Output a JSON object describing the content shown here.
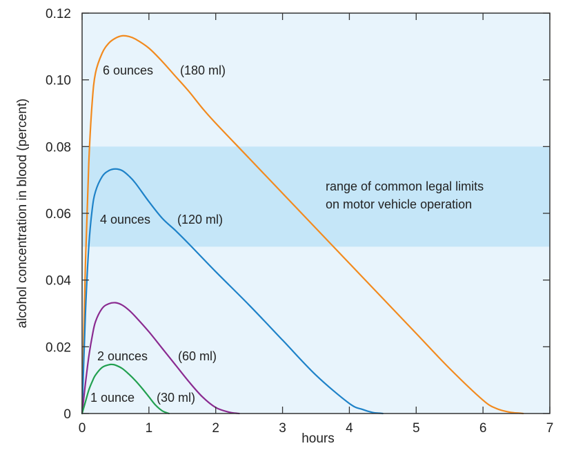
{
  "chart_data": {
    "type": "line",
    "title": "",
    "xlabel": "hours",
    "ylabel": "alcohol concentration in blood (percent)",
    "xlim": [
      0,
      7
    ],
    "ylim": [
      0,
      0.12
    ],
    "x_ticks": [
      "0",
      "1",
      "2",
      "3",
      "4",
      "5",
      "6",
      "7"
    ],
    "y_ticks": [
      "0",
      "0.02",
      "0.04",
      "0.06",
      "0.08",
      "0.10",
      "0.12"
    ],
    "grid": false,
    "colors": {
      "plot_background": "#e8f4fc",
      "band": "#c5e6f8",
      "axis": "#333333"
    },
    "band": {
      "y_range": [
        0.05,
        0.08
      ],
      "label_lines": [
        "range of common legal limits",
        "on motor vehicle operation"
      ]
    },
    "series": [
      {
        "name": "6 ounces",
        "label_amount": "6 ounces",
        "label_volume": "(180 ml)",
        "color": "#f28a1e",
        "x": [
          0,
          0.05,
          0.1,
          0.15,
          0.2,
          0.3,
          0.4,
          0.5,
          0.6,
          0.7,
          0.8,
          1.0,
          1.2,
          1.4,
          1.6,
          1.8,
          2.0,
          2.5,
          3.0,
          3.5,
          4.0,
          4.5,
          5.0,
          5.5,
          6.0,
          6.2,
          6.4,
          6.55,
          6.6
        ],
        "y": [
          0,
          0.045,
          0.075,
          0.093,
          0.102,
          0.108,
          0.111,
          0.1125,
          0.1132,
          0.113,
          0.1122,
          0.1095,
          0.1055,
          0.101,
          0.0965,
          0.0915,
          0.087,
          0.0765,
          0.066,
          0.0555,
          0.045,
          0.0345,
          0.024,
          0.0135,
          0.004,
          0.0015,
          0.0004,
          0.0001,
          0
        ]
      },
      {
        "name": "4 ounces",
        "label_amount": "4 ounces",
        "label_volume": "(120 ml)",
        "color": "#1e82c8",
        "x": [
          0,
          0.05,
          0.1,
          0.15,
          0.2,
          0.3,
          0.4,
          0.5,
          0.6,
          0.7,
          0.8,
          1.0,
          1.2,
          1.4,
          1.6,
          2.0,
          2.5,
          3.0,
          3.5,
          4.0,
          4.2,
          4.35,
          4.45,
          4.5
        ],
        "y": [
          0,
          0.03,
          0.05,
          0.061,
          0.0665,
          0.071,
          0.0728,
          0.0733,
          0.0728,
          0.0712,
          0.069,
          0.0635,
          0.0585,
          0.0548,
          0.0508,
          0.0425,
          0.0325,
          0.022,
          0.0115,
          0.003,
          0.0012,
          0.0003,
          0.0001,
          0
        ]
      },
      {
        "name": "2 ounces",
        "label_amount": "2 ounces",
        "label_volume": "(60 ml)",
        "color": "#8a2a90",
        "x": [
          0,
          0.05,
          0.1,
          0.15,
          0.2,
          0.3,
          0.4,
          0.5,
          0.6,
          0.7,
          0.8,
          1.0,
          1.2,
          1.4,
          1.6,
          1.8,
          2.0,
          2.2,
          2.3,
          2.35
        ],
        "y": [
          0,
          0.009,
          0.017,
          0.023,
          0.0275,
          0.0315,
          0.0329,
          0.0332,
          0.0325,
          0.031,
          0.029,
          0.0245,
          0.0195,
          0.0145,
          0.0095,
          0.005,
          0.0018,
          0.0004,
          0.0001,
          0
        ]
      },
      {
        "name": "1 ounce",
        "label_amount": "1 ounce",
        "label_volume": "(30 ml)",
        "color": "#22a050",
        "x": [
          0,
          0.05,
          0.1,
          0.15,
          0.2,
          0.3,
          0.4,
          0.45,
          0.5,
          0.6,
          0.7,
          0.8,
          0.9,
          1.0,
          1.1,
          1.2,
          1.3
        ],
        "y": [
          0,
          0.0035,
          0.007,
          0.0095,
          0.0115,
          0.0138,
          0.0146,
          0.0147,
          0.0145,
          0.0135,
          0.0118,
          0.0098,
          0.0075,
          0.005,
          0.0025,
          0.0008,
          0
        ]
      }
    ]
  }
}
